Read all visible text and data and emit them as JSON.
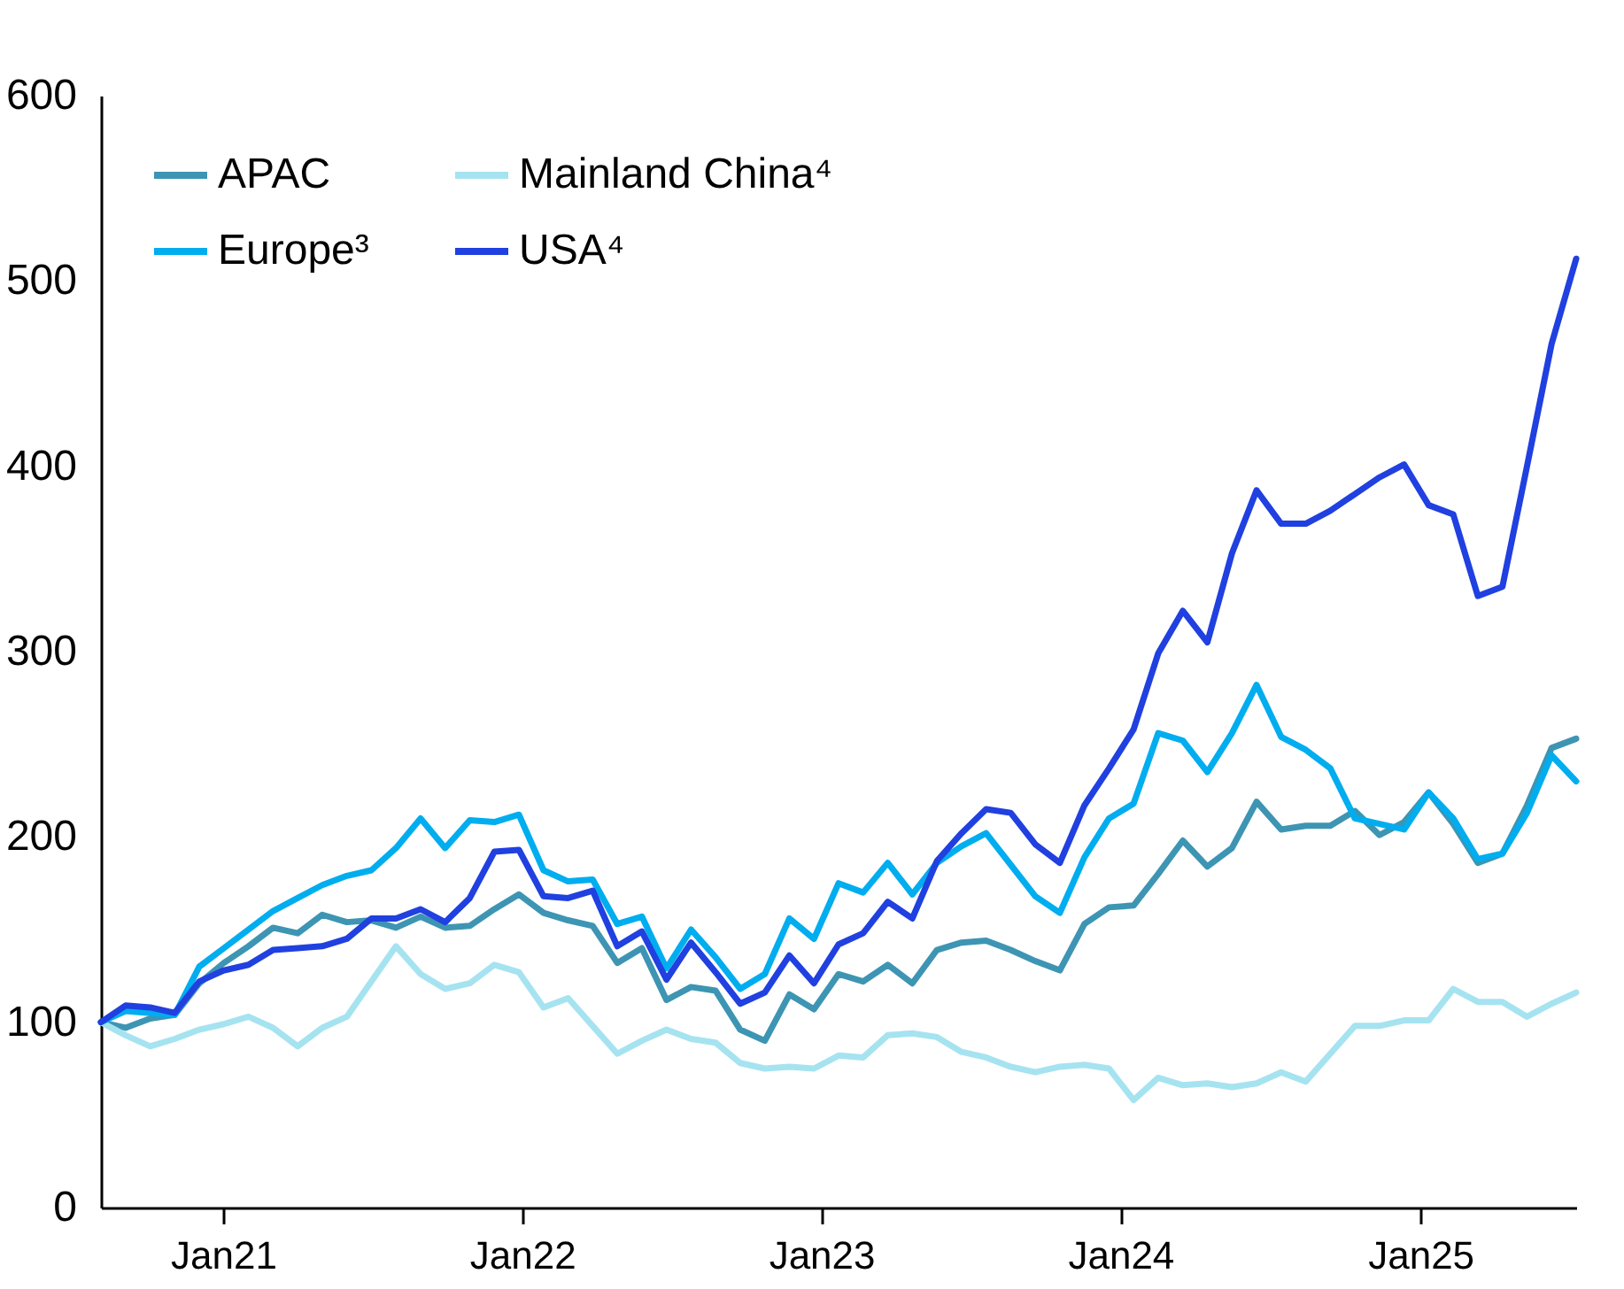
{
  "chart_data": {
    "type": "line",
    "x": [
      "2020-08-05",
      "2020-09-04",
      "2020-10-04",
      "2020-11-03",
      "2020-12-03",
      "2021-01-02",
      "2021-02-01",
      "2021-03-03",
      "2021-04-02",
      "2021-05-02",
      "2021-06-01",
      "2021-07-01",
      "2021-07-31",
      "2021-08-30",
      "2021-09-29",
      "2021-10-29",
      "2021-11-28",
      "2021-12-28",
      "2022-01-27",
      "2022-02-26",
      "2022-03-28",
      "2022-04-27",
      "2022-05-27",
      "2022-06-26",
      "2022-07-26",
      "2022-08-25",
      "2022-09-24",
      "2022-10-24",
      "2022-11-23",
      "2022-12-23",
      "2023-01-22",
      "2023-02-21",
      "2023-03-23",
      "2023-04-22",
      "2023-05-22",
      "2023-06-21",
      "2023-07-21",
      "2023-08-20",
      "2023-09-19",
      "2023-10-19",
      "2023-11-18",
      "2023-12-18",
      "2024-01-17",
      "2024-02-16",
      "2024-03-17",
      "2024-04-16",
      "2024-05-16",
      "2024-06-15",
      "2024-07-15",
      "2024-08-14",
      "2024-09-13",
      "2024-10-13",
      "2024-11-12",
      "2024-12-12",
      "2025-01-11",
      "2025-02-10",
      "2025-03-12",
      "2025-04-11",
      "2025-05-11",
      "2025-06-10",
      "2025-07-10"
    ],
    "series": [
      {
        "name": "APAC",
        "color": "#3d95b3",
        "values": [
          100,
          97,
          102,
          104,
          121,
          132,
          141,
          151,
          148,
          158,
          154,
          155,
          151,
          157,
          151,
          152,
          161,
          169,
          159,
          155,
          152,
          132,
          140,
          112,
          119,
          117,
          96,
          90,
          115,
          107,
          126,
          122,
          131,
          121,
          139,
          143,
          144,
          139,
          133,
          128,
          153,
          162,
          163,
          180,
          198,
          184,
          194,
          219,
          204,
          206,
          206,
          214,
          201,
          208,
          224,
          207,
          186,
          191,
          217,
          248,
          253
        ]
      },
      {
        "name": "Mainland China⁴",
        "color": "#a6e3f0",
        "values": [
          100,
          93,
          87,
          91,
          96,
          99,
          103,
          97,
          87,
          97,
          103,
          122,
          141,
          126,
          118,
          121,
          131,
          127,
          108,
          113,
          98,
          83,
          90,
          96,
          91,
          89,
          78,
          75,
          76,
          75,
          82,
          81,
          93,
          94,
          92,
          84,
          81,
          76,
          73,
          76,
          77,
          75,
          58,
          70,
          66,
          67,
          65,
          67,
          73,
          68,
          83,
          98,
          98,
          101,
          101,
          118,
          111,
          111,
          103,
          110,
          116
        ]
      },
      {
        "name": "Europe³",
        "color": "#00adef",
        "values": [
          100,
          106,
          105,
          104,
          130,
          140,
          150,
          160,
          167,
          174,
          179,
          182,
          194,
          210,
          194,
          209,
          208,
          212,
          182,
          176,
          177,
          153,
          157,
          129,
          150,
          135,
          118,
          126,
          156,
          145,
          175,
          170,
          186,
          169,
          186,
          195,
          202,
          185,
          168,
          159,
          189,
          210,
          218,
          256,
          252,
          235,
          256,
          282,
          254,
          247,
          237,
          210,
          207,
          204,
          224,
          210,
          188,
          191,
          213,
          244,
          230
        ]
      },
      {
        "name": "USA⁴",
        "color": "#2040e0",
        "values": [
          100,
          109,
          108,
          105,
          122,
          128,
          131,
          139,
          140,
          141,
          145,
          156,
          156,
          161,
          154,
          167,
          192,
          193,
          168,
          167,
          171,
          141,
          149,
          123,
          143,
          127,
          110,
          116,
          136,
          121,
          142,
          148,
          165,
          156,
          187,
          202,
          215,
          213,
          196,
          186,
          217,
          237,
          258,
          299,
          322,
          305,
          353,
          387,
          369,
          369,
          376,
          385,
          394,
          401,
          379,
          374,
          330,
          335,
          400,
          466,
          512
        ]
      }
    ],
    "xlim": [
      "2020-08-05",
      "2025-07-10"
    ],
    "xticks": [
      {
        "value": "2021-01",
        "label": "Jan21"
      },
      {
        "value": "2022-01",
        "label": "Jan22"
      },
      {
        "value": "2023-01",
        "label": "Jan23"
      },
      {
        "value": "2024-01",
        "label": "Jan24"
      },
      {
        "value": "2025-01",
        "label": "Jan25"
      }
    ],
    "ylim": [
      0,
      600
    ],
    "yticks": [
      0,
      100,
      200,
      300,
      400,
      500,
      600
    ],
    "legend": "top left",
    "line_style": "solid",
    "marker": "none"
  }
}
